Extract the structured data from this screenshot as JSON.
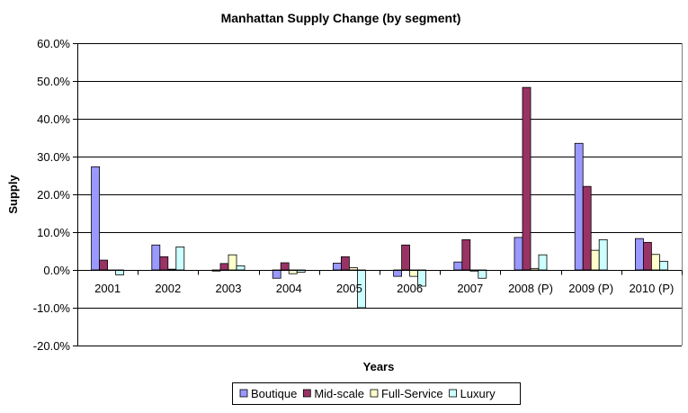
{
  "chart_data": {
    "type": "bar",
    "title": "Manhattan Supply Change (by segment)",
    "xlabel": "Years",
    "ylabel": "Supply",
    "ylim": [
      -0.2,
      0.6
    ],
    "ytick_step": 0.1,
    "ytick_labels": [
      "-20.0%",
      "-10.0%",
      "0.0%",
      "10.0%",
      "20.0%",
      "30.0%",
      "40.0%",
      "50.0%",
      "60.0%"
    ],
    "grid": true,
    "legend_position": "bottom",
    "categories": [
      "2001",
      "2002",
      "2003",
      "2004",
      "2005",
      "2006",
      "2007",
      "2008 (P)",
      "2009 (P)",
      "2010 (P)"
    ],
    "series": [
      {
        "name": "Boutique",
        "color": "#9999ff",
        "values": [
          0.273,
          0.066,
          -0.003,
          -0.022,
          0.018,
          -0.017,
          0.021,
          0.086,
          0.335,
          0.083
        ]
      },
      {
        "name": "Mid-scale",
        "color": "#993366",
        "values": [
          0.026,
          0.035,
          0.017,
          0.019,
          0.035,
          0.066,
          0.08,
          0.483,
          0.221,
          0.073
        ]
      },
      {
        "name": "Full-Service",
        "color": "#ffffcc",
        "values": [
          0.0,
          0.002,
          0.04,
          -0.01,
          0.006,
          -0.017,
          -0.003,
          0.004,
          0.052,
          0.041
        ]
      },
      {
        "name": "Luxury",
        "color": "#ccffff",
        "values": [
          -0.013,
          0.061,
          0.011,
          -0.006,
          -0.1,
          -0.043,
          -0.022,
          0.04,
          0.08,
          0.023
        ]
      }
    ]
  }
}
